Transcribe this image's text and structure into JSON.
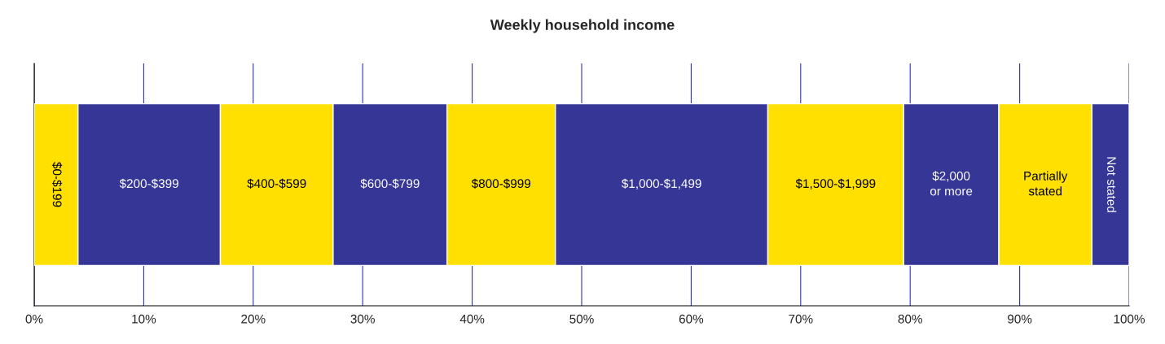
{
  "chart_data": {
    "type": "bar",
    "title": "Weekly household income",
    "orientation": "horizontal",
    "stacked": true,
    "categories": [
      null
    ],
    "series": [
      {
        "name": "$0-$199",
        "color": "#ffe000",
        "values": [
          4.0
        ]
      },
      {
        "name": "$200-$399",
        "color": "#363696",
        "values": [
          13.0
        ]
      },
      {
        "name": "$400-$599",
        "color": "#ffe000",
        "values": [
          10.3
        ]
      },
      {
        "name": "$600-$799",
        "color": "#363696",
        "values": [
          10.4
        ]
      },
      {
        "name": "$800-$999",
        "color": "#ffe000",
        "values": [
          9.9
        ]
      },
      {
        "name": "$1,000-$1,499",
        "color": "#363696",
        "values": [
          19.4
        ]
      },
      {
        "name": "$1,500-$1,999",
        "color": "#ffe000",
        "values": [
          12.4
        ]
      },
      {
        "name": "$2,000\nor more",
        "color": "#363696",
        "values": [
          8.7
        ]
      },
      {
        "name": "Partially\nstated",
        "color": "#ffe000",
        "values": [
          8.5
        ]
      },
      {
        "name": "Not stated",
        "color": "#363696",
        "values": [
          3.4
        ]
      }
    ],
    "xlim": [
      0,
      100
    ],
    "xticks": [
      {
        "value": 0,
        "label": "0%"
      },
      {
        "value": 10,
        "label": "10%"
      },
      {
        "value": 20,
        "label": "20%"
      },
      {
        "value": 30,
        "label": "30%"
      },
      {
        "value": 40,
        "label": "40%"
      },
      {
        "value": 50,
        "label": "50%"
      },
      {
        "value": 60,
        "label": "60%"
      },
      {
        "value": 70,
        "label": "70%"
      },
      {
        "value": 80,
        "label": "80%"
      },
      {
        "value": 90,
        "label": "90%"
      },
      {
        "value": 100,
        "label": "100%"
      }
    ],
    "grid": "x",
    "legend": false,
    "tick_labels": "x"
  }
}
